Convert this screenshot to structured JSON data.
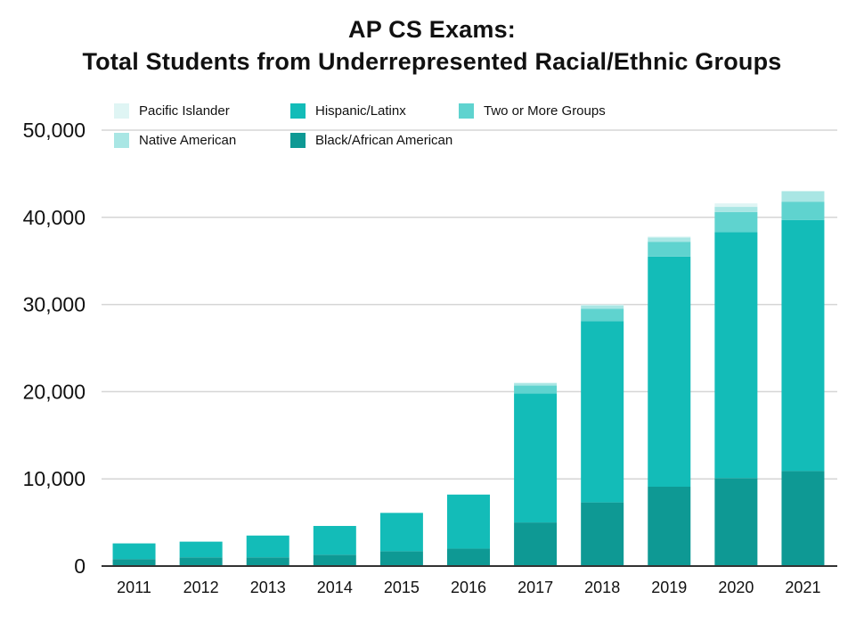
{
  "chart_data": {
    "type": "bar",
    "stacked": true,
    "title": "AP CS Exams:",
    "subtitle": "Total Students from Underrepresented Racial/Ethnic Groups",
    "xlabel": "",
    "ylabel": "",
    "ylim": [
      0,
      50000
    ],
    "yticks": [
      0,
      10000,
      20000,
      30000,
      40000,
      50000
    ],
    "ytick_labels": [
      "0",
      "10,000",
      "20,000",
      "30,000",
      "40,000",
      "50,000"
    ],
    "grid": true,
    "legend_position": "top-left",
    "categories": [
      "2011",
      "2012",
      "2013",
      "2014",
      "2015",
      "2016",
      "2017",
      "2018",
      "2019",
      "2020",
      "2021"
    ],
    "series": [
      {
        "name": "Black/African American",
        "color": "#0e9994",
        "values": [
          800,
          1000,
          1000,
          1300,
          1700,
          2000,
          5000,
          7300,
          9100,
          10100,
          10900
        ]
      },
      {
        "name": "Hispanic/Latinx",
        "color": "#13bcb8",
        "values": [
          1800,
          1800,
          2500,
          3300,
          4400,
          6200,
          14800,
          20800,
          26400,
          28200,
          28800
        ]
      },
      {
        "name": "Two or More Groups",
        "color": "#5fd3cf",
        "values": [
          0,
          0,
          0,
          0,
          0,
          0,
          900,
          1400,
          1700,
          2300,
          2100
        ]
      },
      {
        "name": "Native American",
        "color": "#a9e6e4",
        "values": [
          0,
          0,
          0,
          0,
          0,
          0,
          300,
          400,
          500,
          600,
          1200
        ]
      },
      {
        "name": "Pacific Islander",
        "color": "#dff5f4",
        "values": [
          0,
          0,
          0,
          0,
          0,
          0,
          0,
          100,
          100,
          400,
          0
        ]
      }
    ],
    "legend_order": [
      "Pacific Islander",
      "Hispanic/Latinx",
      "Two or More Groups",
      "Native American",
      "Black/African American"
    ]
  }
}
